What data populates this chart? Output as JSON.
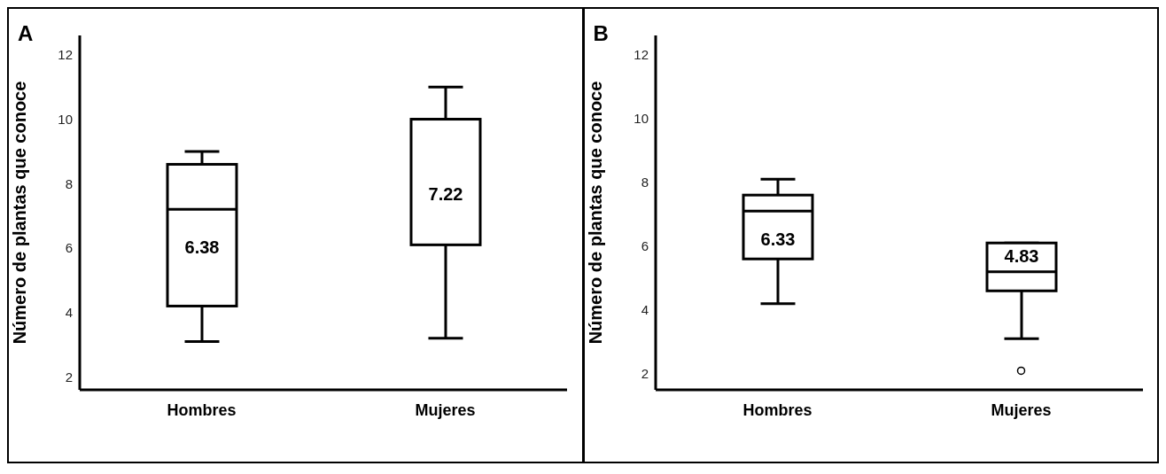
{
  "chart_data": [
    {
      "type": "box",
      "title": "A",
      "ylabel": "Número de plantas que conoce",
      "categories": [
        "Hombres",
        "Mujeres"
      ],
      "boxes": [
        {
          "low": 3.1,
          "q1": 4.2,
          "median": 7.2,
          "q3": 8.6,
          "high": 9
        },
        {
          "low": 3.2,
          "q1": 6.1,
          "median": 10,
          "q3": 10,
          "high": 11
        }
      ],
      "ylim": [
        1.6,
        12.6
      ],
      "yticks": [
        2,
        4,
        6,
        8,
        10,
        12
      ],
      "grid": false,
      "annotations": [
        "6.38",
        "7.22"
      ]
    },
    {
      "type": "box",
      "title": "B",
      "ylabel": "Número de plantas que conoce",
      "categories": [
        "Hombres",
        "Mujeres"
      ],
      "boxes": [
        {
          "low": 4.2,
          "q1": 5.6,
          "median": 7.1,
          "q3": 7.6,
          "high": 8.1
        },
        {
          "low": 3.1,
          "q1": 4.6,
          "median": 5.2,
          "q3": 6.1,
          "high": 6.1,
          "outliers": [
            2.1
          ]
        }
      ],
      "ylim": [
        1.5,
        12.6
      ],
      "yticks": [
        2,
        4,
        6,
        8,
        10,
        12
      ],
      "grid": false,
      "annotations": [
        "6.33",
        "4.83"
      ]
    }
  ]
}
